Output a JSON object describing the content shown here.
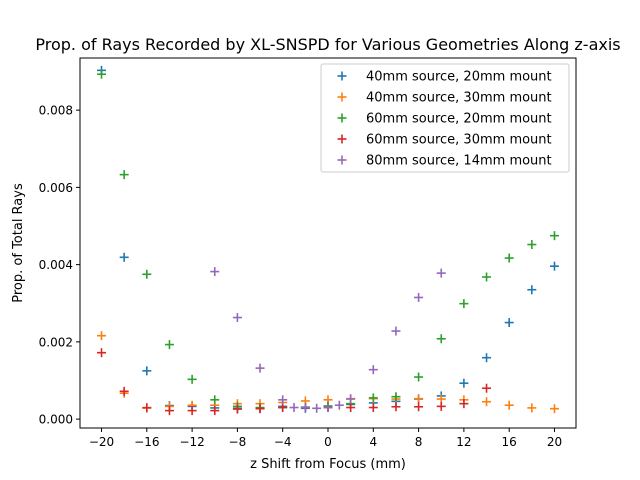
{
  "chart_data": {
    "type": "scatter",
    "title": "Prop. of Rays Recorded by XL-SNSPD for Various Geometries Along z-axis",
    "xlabel": "z Shift from Focus (mm)",
    "ylabel": "Prop. of Total Rays",
    "xlim": [
      -21.9,
      21.9
    ],
    "ylim": [
      -0.00023,
      0.00935
    ],
    "xticks": [
      -20,
      -16,
      -12,
      -8,
      -4,
      0,
      4,
      8,
      12,
      16,
      20
    ],
    "xtick_labels": [
      "−20",
      "−16",
      "−12",
      "−8",
      "−4",
      "0",
      "4",
      "8",
      "12",
      "16",
      "20"
    ],
    "yticks": [
      0,
      0.002,
      0.004,
      0.006,
      0.008
    ],
    "ytick_labels": [
      "0.000",
      "0.002",
      "0.004",
      "0.006",
      "0.008"
    ],
    "grid": false,
    "marker": "+",
    "legend_position": "upper right",
    "series": [
      {
        "name": "40mm source, 20mm mount",
        "color": "#1f77b4",
        "x": [
          -20,
          -18,
          -16,
          -14,
          -12,
          -10,
          -8,
          -6,
          -4,
          -2,
          0,
          2,
          4,
          6,
          8,
          10,
          12,
          14,
          16,
          18,
          20
        ],
        "y": [
          0.00903,
          0.00419,
          0.00125,
          0.00035,
          0.00033,
          0.00029,
          0.00028,
          0.00028,
          0.00033,
          0.00028,
          0.00033,
          0.00038,
          0.00042,
          0.00046,
          0.00052,
          0.0006,
          0.00093,
          0.00159,
          0.0025,
          0.00335,
          0.00396
        ]
      },
      {
        "name": "40mm source, 30mm mount",
        "color": "#ff7f0e",
        "x": [
          -20,
          -18,
          -16,
          -14,
          -12,
          -10,
          -8,
          -6,
          -4,
          -2,
          0,
          2,
          4,
          6,
          8,
          10,
          12,
          14,
          16,
          18,
          20
        ],
        "y": [
          0.00216,
          0.00067,
          0.0003,
          0.00033,
          0.00036,
          0.00036,
          0.0004,
          0.0004,
          0.00043,
          0.00047,
          0.0005,
          0.00053,
          0.00053,
          0.00052,
          0.00053,
          0.00052,
          0.0005,
          0.00045,
          0.00036,
          0.00029,
          0.00027
        ]
      },
      {
        "name": "60mm source, 20mm mount",
        "color": "#2ca02c",
        "x": [
          -20,
          -18,
          -16,
          -14,
          -12,
          -10,
          -8,
          -6,
          -4,
          -2,
          0,
          2,
          4,
          6,
          8,
          10,
          12,
          14,
          16,
          18,
          20
        ],
        "y": [
          0.00893,
          0.00633,
          0.00375,
          0.00193,
          0.00103,
          0.0005,
          0.00033,
          0.0003,
          0.0003,
          0.00031,
          0.00034,
          0.0004,
          0.00055,
          0.00058,
          0.00109,
          0.00208,
          0.00299,
          0.00368,
          0.00417,
          0.00452,
          0.00475
        ]
      },
      {
        "name": "60mm source, 30mm mount",
        "color": "#d62728",
        "x": [
          -20,
          -18,
          -16,
          -14,
          -12,
          -10,
          -8,
          -6,
          -4,
          -2,
          0,
          2,
          4,
          6,
          8,
          10,
          12,
          14
        ],
        "y": [
          0.00172,
          0.00072,
          0.00029,
          0.00022,
          0.00022,
          0.00022,
          0.00026,
          0.00027,
          0.0003,
          0.0003,
          0.0003,
          0.0003,
          0.0003,
          0.00032,
          0.00032,
          0.00033,
          0.0004,
          0.0008
        ]
      },
      {
        "name": "80mm source, 14mm mount",
        "color": "#9467bd",
        "x": [
          -10,
          -8,
          -6,
          -4,
          -3,
          -2,
          -1,
          0,
          1,
          2,
          4,
          6,
          8,
          10
        ],
        "y": [
          0.00382,
          0.00263,
          0.00132,
          0.0005,
          0.0003,
          0.0003,
          0.00028,
          0.0003,
          0.00036,
          0.00052,
          0.00128,
          0.00228,
          0.00315,
          0.00378
        ]
      }
    ]
  }
}
